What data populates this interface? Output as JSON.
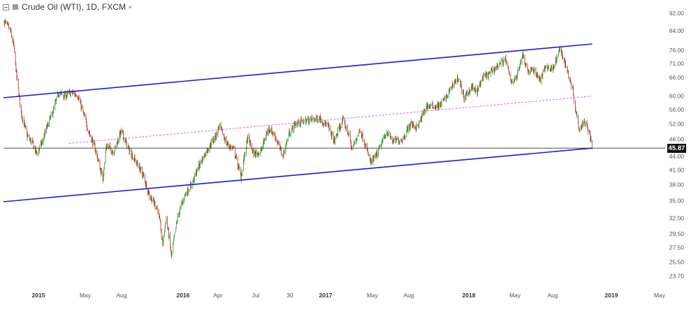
{
  "header": {
    "title": "Crude Oil (WTI), 1D, FXCM",
    "collapse_icon": "collapse-minus-icon",
    "series_swatch_color": "#9a9a9a",
    "menu_caret": "▾"
  },
  "current_price_label": "45.87",
  "chart_data": {
    "type": "candlestick",
    "title": "Crude Oil (WTI), 1D, FXCM",
    "x_labels": [
      "2015",
      "May",
      "Aug",
      "2016",
      "Apr",
      "Jul",
      "30",
      "2017",
      "May",
      "Aug",
      "2018",
      "May",
      "Aug",
      "2019",
      "May"
    ],
    "x_label_bold": [
      "2015",
      "2016",
      "2017",
      "2018",
      "2019"
    ],
    "y_tick_labels": [
      "92.00",
      "84.00",
      "76.00",
      "71.00",
      "66.00",
      "60.00",
      "56.00",
      "52.00",
      "48.00",
      "44.00",
      "41.00",
      "38.00",
      "35.00",
      "32.00",
      "29.50",
      "27.50",
      "25.50",
      "23.70"
    ],
    "y_scale": "log",
    "y_range": [
      23.0,
      95.0
    ],
    "x_range": [
      "2014-12-20",
      "2019-06-20"
    ],
    "current_price": 45.87,
    "up_color": "#2ca02c",
    "down_color": "#c0392b",
    "price_path": [
      [
        "2014-12-22",
        88.0
      ],
      [
        "2015-01-05",
        84.5
      ],
      [
        "2015-01-14",
        78.0
      ],
      [
        "2015-01-22",
        66.0
      ],
      [
        "2015-02-02",
        55.0
      ],
      [
        "2015-02-16",
        49.0
      ],
      [
        "2015-03-02",
        47.0
      ],
      [
        "2015-03-13",
        44.5
      ],
      [
        "2015-03-27",
        47.5
      ],
      [
        "2015-04-10",
        52.0
      ],
      [
        "2015-04-24",
        56.0
      ],
      [
        "2015-05-06",
        61.0
      ],
      [
        "2015-05-20",
        60.0
      ],
      [
        "2015-06-05",
        61.0
      ],
      [
        "2015-06-22",
        60.5
      ],
      [
        "2015-07-06",
        55.0
      ],
      [
        "2015-07-20",
        50.0
      ],
      [
        "2015-08-04",
        46.0
      ],
      [
        "2015-08-14",
        42.5
      ],
      [
        "2015-08-24",
        39.0
      ],
      [
        "2015-09-02",
        46.5
      ],
      [
        "2015-09-20",
        45.0
      ],
      [
        "2015-10-09",
        50.0
      ],
      [
        "2015-10-28",
        45.5
      ],
      [
        "2015-11-16",
        42.5
      ],
      [
        "2015-12-02",
        40.0
      ],
      [
        "2015-12-18",
        36.0
      ],
      [
        "2016-01-08",
        33.5
      ],
      [
        "2016-01-20",
        28.0
      ],
      [
        "2016-01-29",
        32.0
      ],
      [
        "2016-02-11",
        26.2
      ],
      [
        "2016-02-26",
        32.0
      ],
      [
        "2016-03-15",
        36.0
      ],
      [
        "2016-04-01",
        38.0
      ],
      [
        "2016-04-20",
        42.0
      ],
      [
        "2016-05-10",
        45.5
      ],
      [
        "2016-06-01",
        49.0
      ],
      [
        "2016-06-09",
        51.5
      ],
      [
        "2016-06-27",
        47.0
      ],
      [
        "2016-07-15",
        45.5
      ],
      [
        "2016-08-02",
        39.5
      ],
      [
        "2016-08-19",
        48.5
      ],
      [
        "2016-09-02",
        44.5
      ],
      [
        "2016-09-20",
        45.0
      ],
      [
        "2016-10-10",
        51.0
      ],
      [
        "2016-10-25",
        49.0
      ],
      [
        "2016-11-14",
        44.0
      ],
      [
        "2016-11-30",
        49.5
      ],
      [
        "2016-12-15",
        52.0
      ],
      [
        "2017-01-15",
        53.0
      ],
      [
        "2017-02-15",
        53.5
      ],
      [
        "2017-03-08",
        51.0
      ],
      [
        "2017-03-22",
        47.5
      ],
      [
        "2017-04-12",
        53.0
      ],
      [
        "2017-04-28",
        49.0
      ],
      [
        "2017-05-05",
        45.5
      ],
      [
        "2017-05-25",
        50.5
      ],
      [
        "2017-06-21",
        42.5
      ],
      [
        "2017-07-07",
        44.5
      ],
      [
        "2017-07-31",
        50.0
      ],
      [
        "2017-08-15",
        47.5
      ],
      [
        "2017-09-08",
        48.0
      ],
      [
        "2017-09-28",
        52.0
      ],
      [
        "2017-10-15",
        51.0
      ],
      [
        "2017-11-07",
        57.0
      ],
      [
        "2017-12-08",
        57.0
      ],
      [
        "2017-12-28",
        60.0
      ],
      [
        "2018-01-12",
        64.0
      ],
      [
        "2018-01-25",
        66.0
      ],
      [
        "2018-02-09",
        59.0
      ],
      [
        "2018-02-26",
        63.0
      ],
      [
        "2018-03-12",
        61.0
      ],
      [
        "2018-03-26",
        66.0
      ],
      [
        "2018-04-10",
        67.0
      ],
      [
        "2018-04-20",
        68.5
      ],
      [
        "2018-05-08",
        71.0
      ],
      [
        "2018-05-22",
        72.5
      ],
      [
        "2018-06-04",
        65.0
      ],
      [
        "2018-06-18",
        65.5
      ],
      [
        "2018-07-03",
        74.5
      ],
      [
        "2018-07-18",
        68.0
      ],
      [
        "2018-08-03",
        68.5
      ],
      [
        "2018-08-16",
        65.0
      ],
      [
        "2018-08-31",
        70.0
      ],
      [
        "2018-09-14",
        69.0
      ],
      [
        "2018-09-28",
        73.0
      ],
      [
        "2018-10-03",
        76.5
      ],
      [
        "2018-10-16",
        72.0
      ],
      [
        "2018-10-26",
        67.0
      ],
      [
        "2018-11-06",
        62.0
      ],
      [
        "2018-11-13",
        55.5
      ],
      [
        "2018-11-23",
        50.5
      ],
      [
        "2018-12-03",
        53.0
      ],
      [
        "2018-12-12",
        51.5
      ],
      [
        "2018-12-20",
        48.0
      ],
      [
        "2018-12-24",
        45.87
      ]
    ],
    "channel_upper": {
      "from": [
        "2014-12-20",
        59.5
      ],
      "to": [
        "2018-12-24",
        78.5
      ],
      "color": "#1a1adb"
    },
    "channel_lower": {
      "from": [
        "2014-12-20",
        34.8
      ],
      "to": [
        "2018-12-24",
        45.87
      ],
      "color": "#1a1adb"
    },
    "channel_mid": {
      "from": [
        "2015-06-01",
        47.0
      ],
      "to": [
        "2018-12-24",
        60.0
      ],
      "color": "#e066e0",
      "style": "dashed"
    },
    "horizontal_line": {
      "price": 45.87,
      "color": "#333333"
    },
    "grid": false
  }
}
